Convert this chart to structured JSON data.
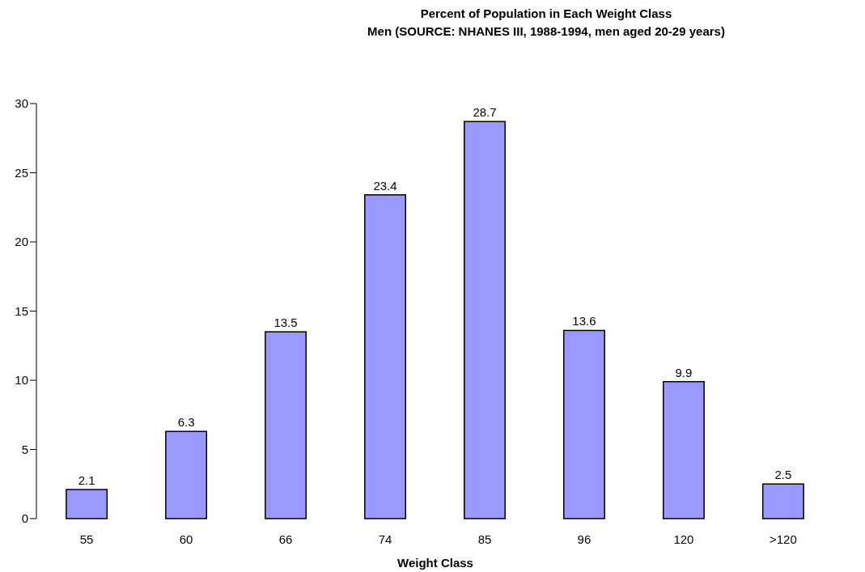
{
  "chart_data": {
    "type": "bar",
    "title": "Percent of Population in Each Weight Class",
    "subtitle": "Men (SOURCE: NHANES III, 1988-1994, men aged 20-29 years)",
    "xlabel": "Weight Class",
    "categories": [
      "55",
      "60",
      "66",
      "74",
      "85",
      "96",
      "120",
      ">120"
    ],
    "values": [
      2.1,
      6.3,
      13.5,
      23.4,
      28.7,
      13.6,
      9.9,
      2.5
    ],
    "color": "#9999ff",
    "ylim": [
      0,
      30
    ],
    "yticks": [
      0,
      5,
      10,
      15,
      20,
      25,
      30
    ],
    "grid": false,
    "data_labels": true
  }
}
